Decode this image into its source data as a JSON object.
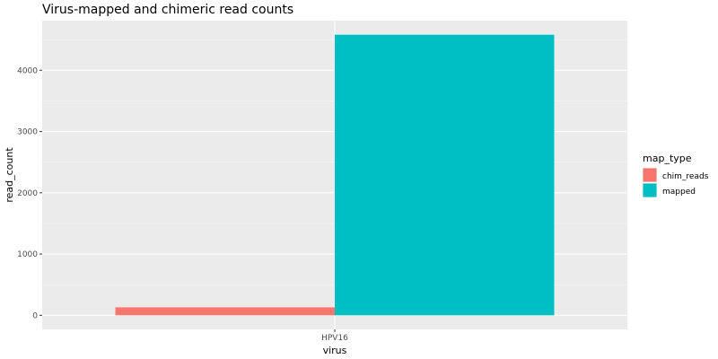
{
  "chart_data": {
    "type": "bar",
    "title": "Virus-mapped and chimeric read counts",
    "xlabel": "virus",
    "ylabel": "read_count",
    "categories": [
      "HPV16"
    ],
    "series": [
      {
        "name": "chim_reads",
        "values": [
          130
        ],
        "color": "#F8766D"
      },
      {
        "name": "mapped",
        "values": [
          4580
        ],
        "color": "#00BFC4"
      }
    ],
    "ylim": [
      -230,
      4810
    ],
    "y_ticks": [
      0,
      1000,
      2000,
      3000,
      4000
    ],
    "y_tick_labels": [
      "0",
      "1000",
      "2000",
      "3000",
      "4000"
    ],
    "grid": true,
    "panel_background": "#EBEBEB",
    "legend": {
      "title": "map_type",
      "placement": "right"
    },
    "bar_layout": "dodge"
  }
}
